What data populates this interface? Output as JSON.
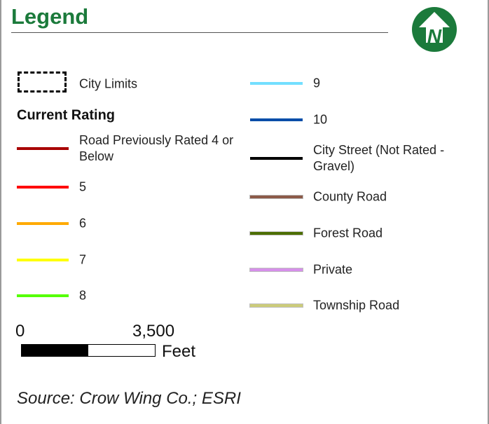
{
  "title": "Legend",
  "city_limits": "City Limits",
  "section": "Current Rating",
  "left_items": [
    {
      "label": "Road Previously Rated 4 or Below",
      "color": "#a80000"
    },
    {
      "label": "5",
      "color": "#ff0000"
    },
    {
      "label": "6",
      "color": "#ffaa00"
    },
    {
      "label": "7",
      "color": "#ffff00"
    },
    {
      "label": "8",
      "color": "#55ff00"
    }
  ],
  "right_items": [
    {
      "label": "9",
      "color": "#73dfff"
    },
    {
      "label": "10",
      "color": "#004da8"
    },
    {
      "label": "City Street (Not Rated - Gravel)",
      "color": "#000000"
    },
    {
      "label": "County Road",
      "color": "#8c5a48"
    },
    {
      "label": "Forest Road",
      "color": "#4c6e00"
    },
    {
      "label": "Private",
      "color": "#d690ea"
    },
    {
      "label": "Township Road",
      "color": "#cccc7a"
    }
  ],
  "scale": {
    "start": "0",
    "end": "3,500",
    "unit": "Feet"
  },
  "source": "Source: Crow Wing Co.; ESRI"
}
